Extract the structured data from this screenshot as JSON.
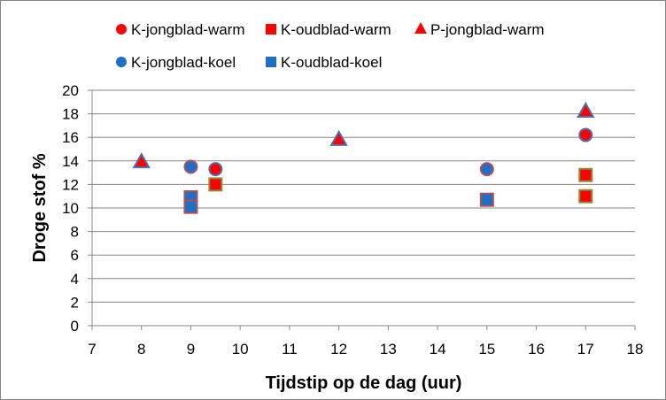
{
  "chart_data": {
    "type": "scatter",
    "title": "",
    "xlabel": "Tijdstip op de dag (uur)",
    "ylabel": "Droge stof %",
    "xlim": [
      7,
      18
    ],
    "ylim": [
      0,
      20
    ],
    "x_ticks": [
      7,
      8,
      9,
      10,
      11,
      12,
      13,
      14,
      15,
      16,
      17,
      18
    ],
    "y_ticks": [
      0,
      2,
      4,
      6,
      8,
      10,
      12,
      14,
      16,
      18,
      20
    ],
    "grid": "horizontal",
    "legend_position": "top",
    "series": [
      {
        "name": "K-jongblad-warm",
        "marker": "circle",
        "fill": "#ff0000",
        "stroke": "#4f6fb0",
        "points": [
          {
            "x": 9.5,
            "y": 13.3
          },
          {
            "x": 17,
            "y": 16.2
          }
        ]
      },
      {
        "name": "K-oudblad-warm",
        "marker": "square",
        "fill": "#ff0000",
        "stroke": "#8c8c3c",
        "points": [
          {
            "x": 9.5,
            "y": 12.0
          },
          {
            "x": 17,
            "y": 12.8
          },
          {
            "x": 17,
            "y": 11.0
          }
        ]
      },
      {
        "name": "P-jongblad-warm",
        "marker": "triangle",
        "fill": "#ff0000",
        "stroke": "#4f6fb0",
        "points": [
          {
            "x": 8,
            "y": 13.9
          },
          {
            "x": 12,
            "y": 15.8
          },
          {
            "x": 17,
            "y": 18.2
          }
        ]
      },
      {
        "name": "K-jongblad-koel",
        "marker": "circle",
        "fill": "#1f6fc6",
        "stroke": "#b0505a",
        "points": [
          {
            "x": 9,
            "y": 13.5
          },
          {
            "x": 15,
            "y": 13.3
          }
        ]
      },
      {
        "name": "K-oudblad-koel",
        "marker": "square",
        "fill": "#1f6fc6",
        "stroke": "#b0505a",
        "points": [
          {
            "x": 9,
            "y": 10.9
          },
          {
            "x": 9,
            "y": 10.1
          },
          {
            "x": 15,
            "y": 10.7
          }
        ]
      }
    ]
  }
}
